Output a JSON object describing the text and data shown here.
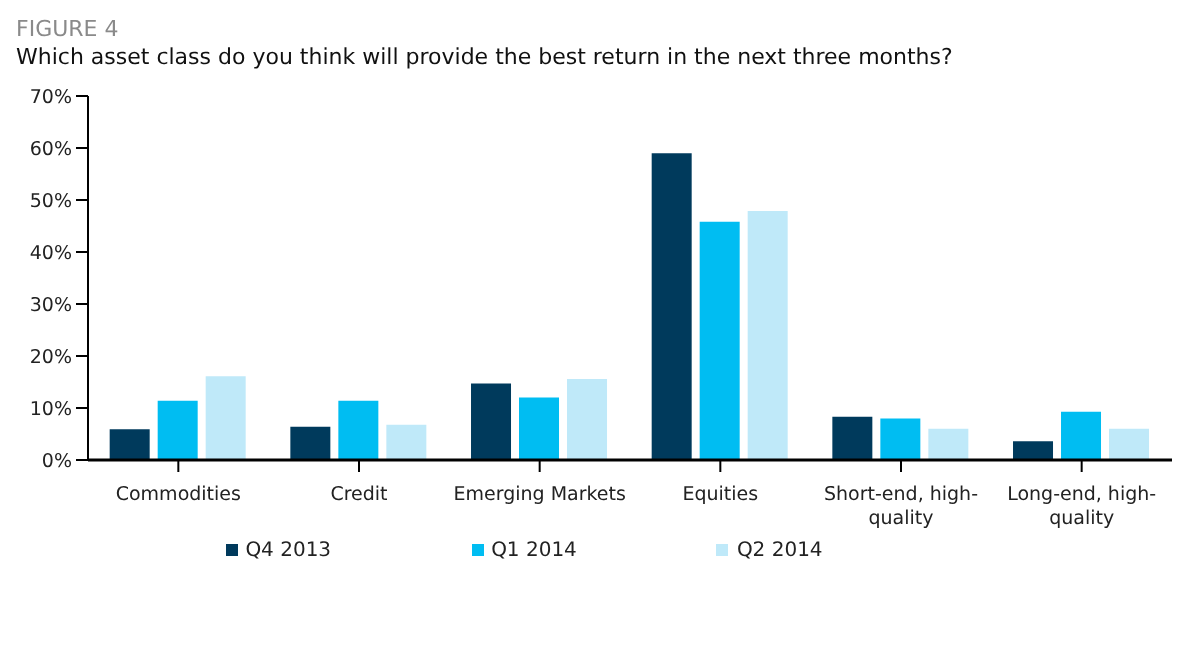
{
  "chart_data": {
    "type": "bar",
    "title": "FIGURE 4",
    "subtitle": "Which asset class do you think will provide the best return in the next three months?",
    "categories": [
      "Commodities",
      "Credit",
      "Emerging Markets",
      "Equities",
      "Short-end, high-quality",
      "Long-end, high-quality"
    ],
    "series": [
      {
        "name": "Q4 2013",
        "color": "#003a5c",
        "values": [
          5.9,
          6.4,
          14.7,
          59.0,
          8.3,
          3.6
        ]
      },
      {
        "name": "Q1 2014",
        "color": "#00bdf2",
        "values": [
          11.4,
          11.4,
          12.0,
          45.8,
          8.0,
          9.3
        ]
      },
      {
        "name": "Q2 2014",
        "color": "#bfe9f9",
        "values": [
          16.1,
          6.8,
          15.6,
          47.9,
          6.0,
          6.0
        ]
      }
    ],
    "ylim": [
      0,
      70
    ],
    "yticks": [
      {
        "value": 0,
        "label": "0%"
      },
      {
        "value": 10,
        "label": "10%"
      },
      {
        "value": 20,
        "label": "20%"
      },
      {
        "value": 30,
        "label": "30%"
      },
      {
        "value": 40,
        "label": "40%"
      },
      {
        "value": 50,
        "label": "50%"
      },
      {
        "value": 60,
        "label": "60%"
      },
      {
        "value": 70,
        "label": "70%"
      }
    ],
    "grid": false,
    "legend": "bottom"
  }
}
